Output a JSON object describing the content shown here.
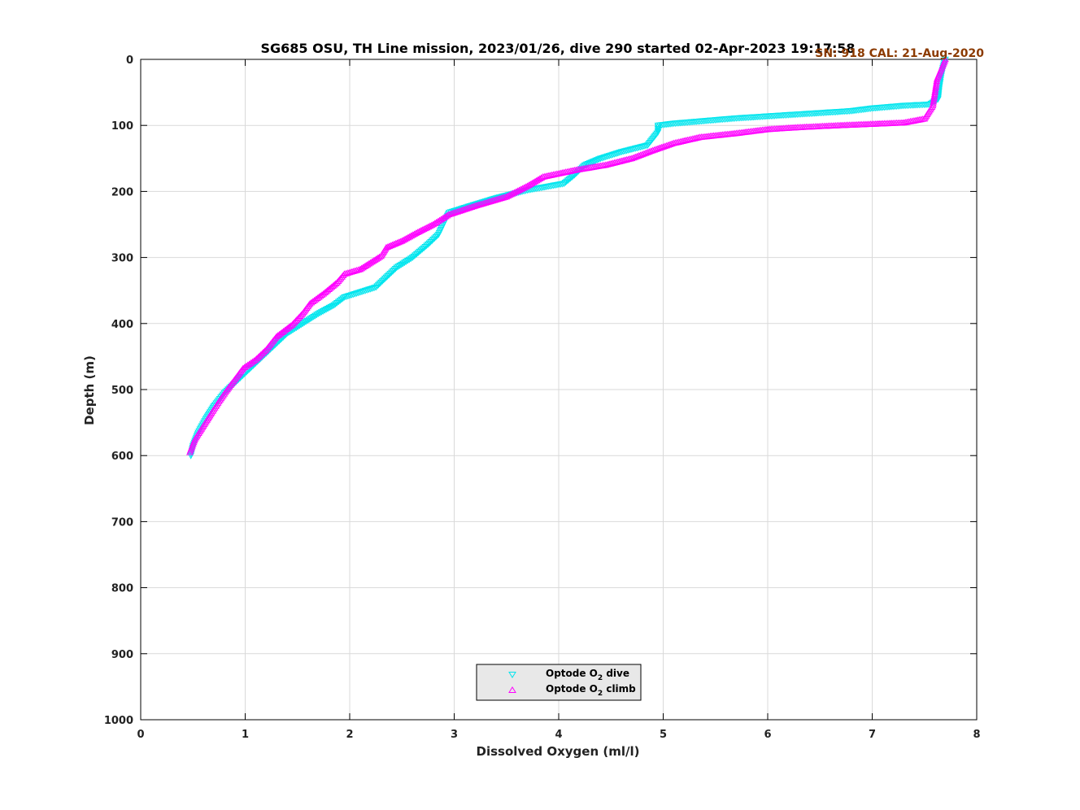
{
  "chart_data": {
    "type": "scatter",
    "title": "SG685 OSU, TH Line mission, 2023/01/26, dive 290 started 02-Apr-2023 19:17:58",
    "calibration_note": "SN: 918  CAL: 21-Aug-2020",
    "xlabel": "Dissolved Oxygen (ml/l)",
    "ylabel": "Depth (m)",
    "xlim": [
      0,
      8
    ],
    "ylim": [
      0,
      1000
    ],
    "y_reversed": true,
    "xticks": [
      "0",
      "1",
      "2",
      "3",
      "4",
      "5",
      "6",
      "7",
      "8"
    ],
    "yticks": [
      "0",
      "100",
      "200",
      "300",
      "400",
      "500",
      "600",
      "700",
      "800",
      "900",
      "1000"
    ],
    "grid": true,
    "legend_position": "bottom-center",
    "series": [
      {
        "name": "dive",
        "legend_label": "Optode O",
        "legend_sub": "2",
        "legend_suffix": " dive",
        "marker": "triangle-down",
        "color": "#00e5ee",
        "points": [
          [
            7.7,
            0
          ],
          [
            7.68,
            10
          ],
          [
            7.66,
            25
          ],
          [
            7.64,
            45
          ],
          [
            7.63,
            60
          ],
          [
            7.55,
            68
          ],
          [
            7.3,
            70
          ],
          [
            7.0,
            74
          ],
          [
            6.8,
            78
          ],
          [
            6.5,
            81
          ],
          [
            6.2,
            84
          ],
          [
            6.0,
            86
          ],
          [
            5.7,
            89
          ],
          [
            5.4,
            93
          ],
          [
            5.1,
            97
          ],
          [
            4.95,
            100
          ],
          [
            4.95,
            110
          ],
          [
            4.9,
            120
          ],
          [
            4.85,
            130
          ],
          [
            4.6,
            140
          ],
          [
            4.4,
            150
          ],
          [
            4.25,
            160
          ],
          [
            4.15,
            175
          ],
          [
            4.05,
            188
          ],
          [
            3.7,
            198
          ],
          [
            3.4,
            210
          ],
          [
            3.15,
            222
          ],
          [
            2.95,
            232
          ],
          [
            2.9,
            248
          ],
          [
            2.85,
            265
          ],
          [
            2.75,
            280
          ],
          [
            2.6,
            300
          ],
          [
            2.45,
            315
          ],
          [
            2.35,
            330
          ],
          [
            2.25,
            345
          ],
          [
            2.05,
            355
          ],
          [
            1.95,
            360
          ],
          [
            1.85,
            372
          ],
          [
            1.7,
            385
          ],
          [
            1.55,
            400
          ],
          [
            1.4,
            415
          ],
          [
            1.3,
            430
          ],
          [
            1.2,
            445
          ],
          [
            1.1,
            460
          ],
          [
            1.0,
            475
          ],
          [
            0.9,
            490
          ],
          [
            0.8,
            505
          ],
          [
            0.7,
            525
          ],
          [
            0.62,
            545
          ],
          [
            0.55,
            565
          ],
          [
            0.5,
            585
          ],
          [
            0.48,
            600
          ]
        ]
      },
      {
        "name": "climb",
        "legend_label": "Optode O",
        "legend_sub": "2",
        "legend_suffix": " climb",
        "marker": "triangle-up",
        "color": "#ff00ff",
        "points": [
          [
            0.47,
            595
          ],
          [
            0.52,
            575
          ],
          [
            0.6,
            555
          ],
          [
            0.68,
            535
          ],
          [
            0.75,
            518
          ],
          [
            0.82,
            502
          ],
          [
            0.9,
            485
          ],
          [
            0.98,
            468
          ],
          [
            1.1,
            455
          ],
          [
            1.2,
            440
          ],
          [
            1.3,
            420
          ],
          [
            1.45,
            402
          ],
          [
            1.55,
            385
          ],
          [
            1.62,
            370
          ],
          [
            1.75,
            355
          ],
          [
            1.88,
            338
          ],
          [
            1.95,
            325
          ],
          [
            2.1,
            318
          ],
          [
            2.2,
            308
          ],
          [
            2.3,
            298
          ],
          [
            2.35,
            285
          ],
          [
            2.5,
            275
          ],
          [
            2.65,
            262
          ],
          [
            2.8,
            250
          ],
          [
            2.95,
            235
          ],
          [
            3.2,
            222
          ],
          [
            3.5,
            208
          ],
          [
            3.7,
            192
          ],
          [
            3.85,
            178
          ],
          [
            4.15,
            168
          ],
          [
            4.45,
            160
          ],
          [
            4.7,
            150
          ],
          [
            4.9,
            138
          ],
          [
            5.1,
            127
          ],
          [
            5.35,
            118
          ],
          [
            5.7,
            112
          ],
          [
            6.0,
            106
          ],
          [
            6.3,
            103
          ],
          [
            6.7,
            100
          ],
          [
            7.0,
            98
          ],
          [
            7.3,
            96
          ],
          [
            7.5,
            90
          ],
          [
            7.58,
            70
          ],
          [
            7.6,
            50
          ],
          [
            7.62,
            30
          ],
          [
            7.66,
            15
          ],
          [
            7.7,
            0
          ]
        ]
      }
    ]
  }
}
